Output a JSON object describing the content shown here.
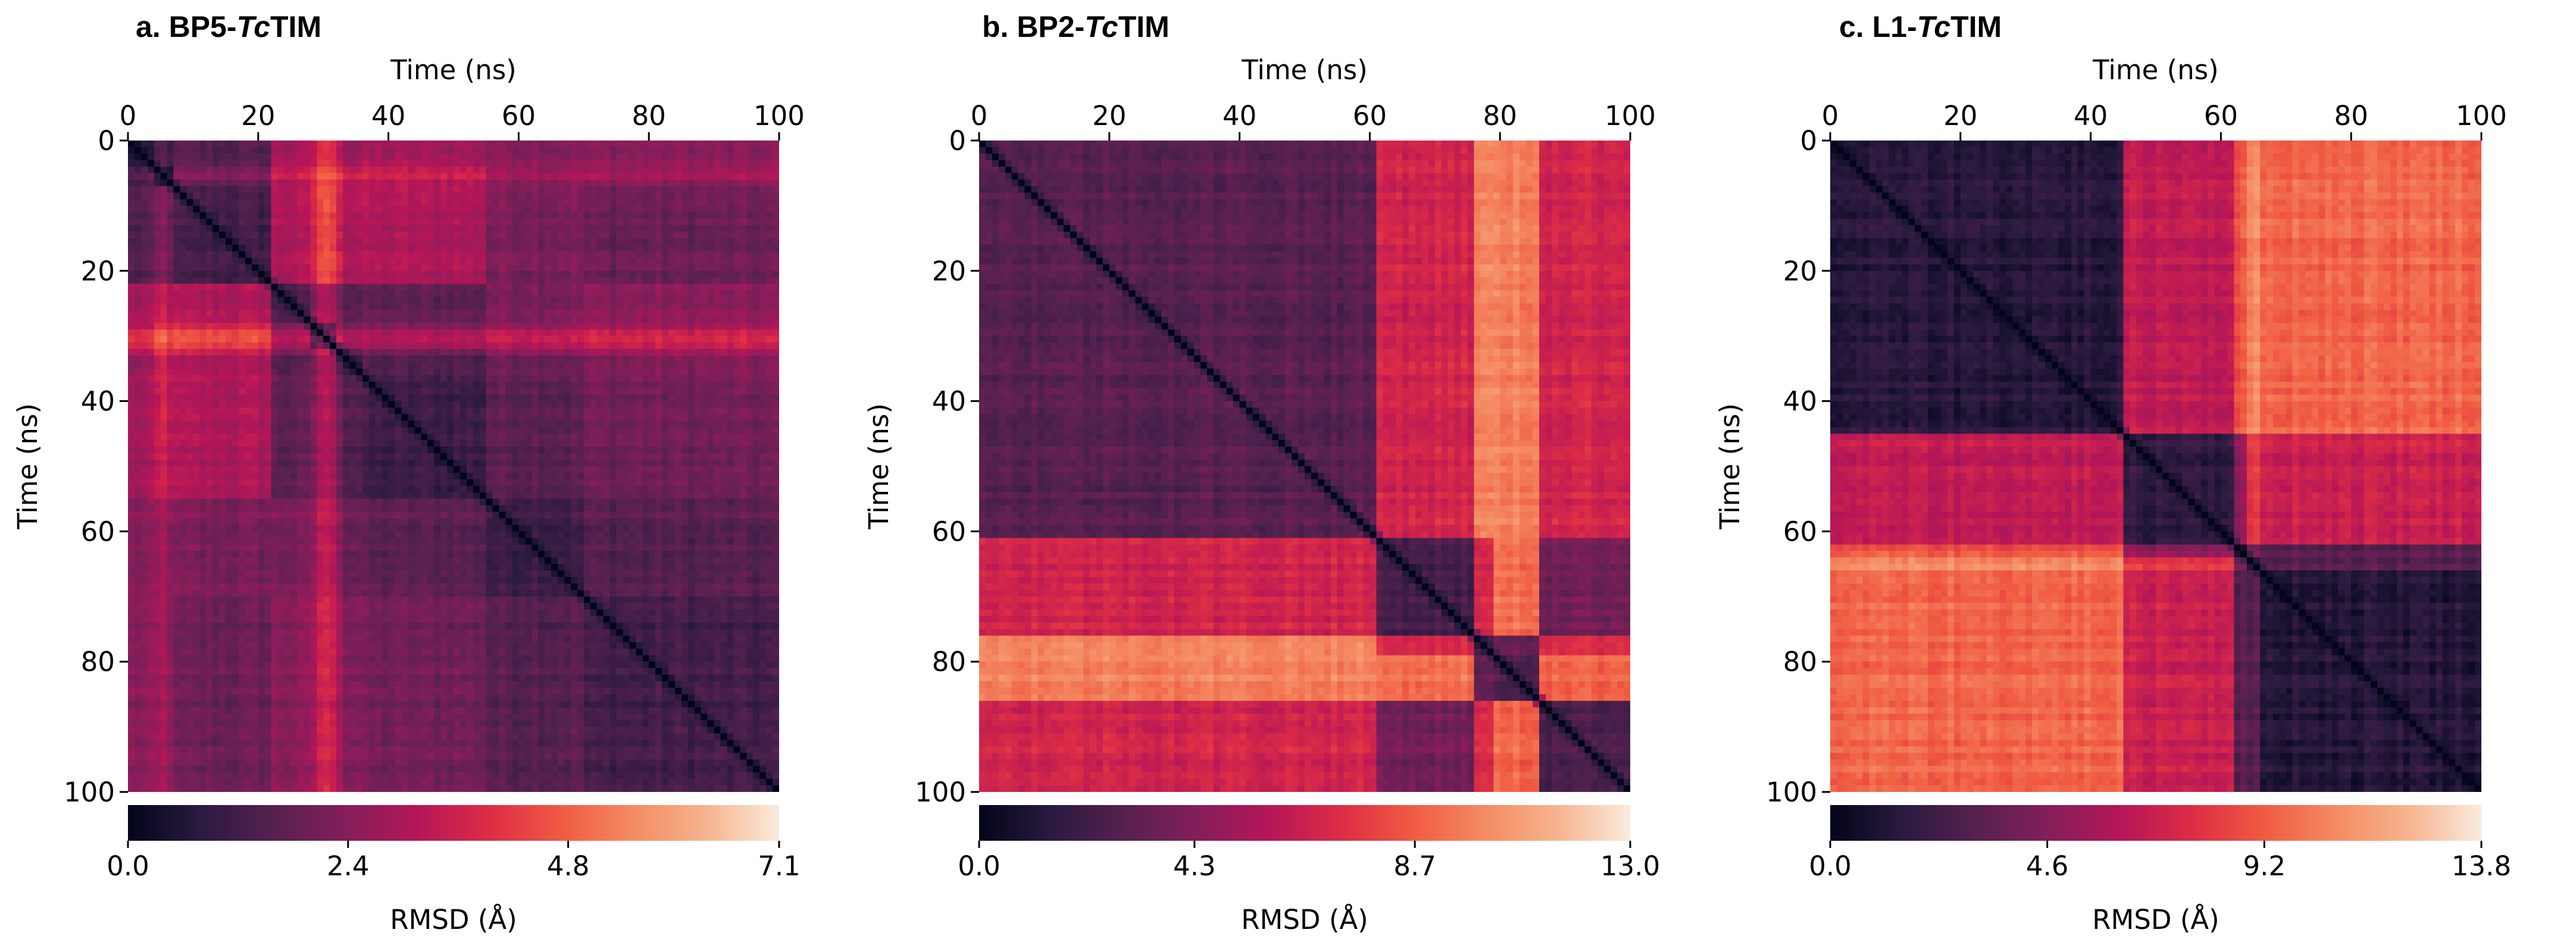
{
  "colormap": [
    "#03051a",
    "#2a1a3f",
    "#55214f",
    "#841e5a",
    "#b41658",
    "#dd2c45",
    "#f05b42",
    "#f48c63",
    "#f6b48f",
    "#faebdd"
  ],
  "chart_data": [
    {
      "type": "heatmap",
      "panel_label": "a. BP5-",
      "panel_label_italic": "Tc",
      "panel_label_suffix": "TIM",
      "xlabel": "Time (ns)",
      "ylabel": "Time (ns)",
      "x_range": [
        0,
        100
      ],
      "y_range": [
        0,
        100
      ],
      "x_ticks": [
        "0",
        "20",
        "40",
        "60",
        "80",
        "100"
      ],
      "y_ticks": [
        "0",
        "20",
        "40",
        "60",
        "80",
        "100"
      ],
      "colorbar_label": "RMSD (Å)",
      "colorbar_range": [
        0.0,
        7.1
      ],
      "colorbar_ticks": [
        "0.0",
        "2.4",
        "4.8",
        "7.1"
      ],
      "states": [
        {
          "start": 0,
          "end": 4
        },
        {
          "start": 4,
          "end": 7
        },
        {
          "start": 7,
          "end": 22
        },
        {
          "start": 22,
          "end": 28
        },
        {
          "start": 28,
          "end": 32
        },
        {
          "start": 32,
          "end": 36
        },
        {
          "start": 36,
          "end": 55
        },
        {
          "start": 55,
          "end": 70
        },
        {
          "start": 70,
          "end": 100
        }
      ],
      "state_rmsd": [
        [
          0.6,
          1.3,
          1.5,
          2.8,
          3.2,
          2.6,
          2.8,
          2.4,
          2.4
        ],
        [
          1.3,
          0.8,
          2.0,
          3.2,
          3.8,
          3.3,
          3.3,
          2.6,
          2.6
        ],
        [
          1.5,
          2.0,
          1.2,
          3.0,
          3.7,
          3.0,
          3.0,
          2.2,
          1.9
        ],
        [
          2.8,
          3.2,
          3.0,
          1.3,
          2.3,
          1.6,
          1.7,
          2.2,
          2.4
        ],
        [
          3.2,
          3.8,
          3.7,
          2.3,
          1.2,
          2.2,
          2.3,
          2.7,
          2.9
        ],
        [
          2.6,
          3.3,
          3.0,
          1.6,
          2.2,
          1.2,
          1.5,
          2.0,
          2.3
        ],
        [
          2.8,
          3.3,
          3.0,
          1.7,
          2.3,
          1.5,
          1.1,
          1.7,
          2.0
        ],
        [
          2.4,
          2.6,
          2.2,
          2.2,
          2.7,
          2.0,
          1.7,
          1.2,
          1.6
        ],
        [
          2.4,
          2.6,
          1.9,
          2.4,
          2.9,
          2.3,
          2.0,
          1.6,
          1.2
        ]
      ],
      "hot_bands": [
        {
          "start": 29,
          "end": 33,
          "add": 1.4
        },
        {
          "start": 5,
          "end": 6,
          "add": 0.6
        }
      ]
    },
    {
      "type": "heatmap",
      "panel_label": "b. BP2-",
      "panel_label_italic": "Tc",
      "panel_label_suffix": "TIM",
      "xlabel": "Time (ns)",
      "ylabel": "Time (ns)",
      "x_range": [
        0,
        100
      ],
      "y_range": [
        0,
        100
      ],
      "x_ticks": [
        "0",
        "20",
        "40",
        "60",
        "80",
        "100"
      ],
      "y_ticks": [
        "0",
        "20",
        "40",
        "60",
        "80",
        "100"
      ],
      "colorbar_label": "RMSD (Å)",
      "colorbar_range": [
        0.0,
        13.0
      ],
      "colorbar_ticks": [
        "0.0",
        "4.3",
        "8.7",
        "13.0"
      ],
      "states": [
        {
          "start": 0,
          "end": 61
        },
        {
          "start": 61,
          "end": 76
        },
        {
          "start": 76,
          "end": 79
        },
        {
          "start": 79,
          "end": 86
        },
        {
          "start": 86,
          "end": 100
        }
      ],
      "state_rmsd": [
        [
          3.0,
          6.8,
          9.8,
          9.8,
          6.8
        ],
        [
          6.8,
          2.4,
          6.8,
          9.3,
          3.8
        ],
        [
          9.8,
          6.8,
          2.2,
          3.2,
          7.0
        ],
        [
          9.8,
          9.3,
          3.2,
          2.6,
          9.0
        ],
        [
          6.8,
          3.8,
          7.0,
          9.0,
          2.6
        ]
      ],
      "hot_bands": []
    },
    {
      "type": "heatmap",
      "panel_label": "c. L1-",
      "panel_label_italic": "Tc",
      "panel_label_suffix": "TIM",
      "xlabel": "Time (ns)",
      "ylabel": "Time (ns)",
      "x_range": [
        0,
        100
      ],
      "y_range": [
        0,
        100
      ],
      "x_ticks": [
        "0",
        "20",
        "40",
        "60",
        "80",
        "100"
      ],
      "y_ticks": [
        "0",
        "20",
        "40",
        "60",
        "80",
        "100"
      ],
      "colorbar_label": "RMSD (Å)",
      "colorbar_range": [
        0.0,
        13.8
      ],
      "colorbar_ticks": [
        "0.0",
        "4.6",
        "9.2",
        "13.8"
      ],
      "states": [
        {
          "start": 0,
          "end": 45
        },
        {
          "start": 45,
          "end": 62
        },
        {
          "start": 62,
          "end": 64
        },
        {
          "start": 64,
          "end": 66
        },
        {
          "start": 66,
          "end": 100
        }
      ],
      "state_rmsd": [
        [
          1.4,
          6.6,
          9.0,
          10.6,
          9.6
        ],
        [
          6.6,
          1.8,
          5.0,
          8.0,
          7.0
        ],
        [
          9.0,
          5.0,
          1.6,
          4.0,
          3.2
        ],
        [
          10.6,
          8.0,
          4.0,
          1.6,
          3.0
        ],
        [
          9.6,
          7.0,
          3.2,
          3.0,
          1.4
        ]
      ],
      "hot_bands": []
    }
  ]
}
